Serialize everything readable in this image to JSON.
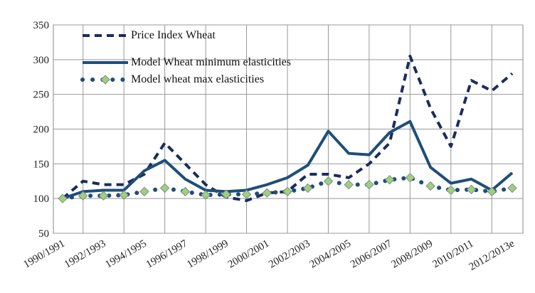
{
  "chart_data": {
    "type": "line",
    "categories": [
      "1990/1991",
      null,
      "1992/1993",
      null,
      "1994/1995",
      null,
      "1996/1997",
      null,
      "1998/1999",
      null,
      "2000/2001",
      null,
      "2002/2003",
      null,
      "2004/2005",
      null,
      "2006/2007",
      null,
      "2008/2009",
      null,
      "2010/2011",
      null,
      "2012/2013e"
    ],
    "series": [
      {
        "name": "Price Index Wheat",
        "color": "#1a2d5c",
        "style": "dashed",
        "values": [
          100,
          125,
          120,
          120,
          135,
          180,
          150,
          120,
          102,
          97,
          108,
          110,
          135,
          135,
          130,
          150,
          180,
          305,
          230,
          175,
          270,
          255,
          280
        ]
      },
      {
        "name": "Model Wheat minimum elasticities",
        "color": "#1f4e79",
        "style": "solid",
        "values": [
          100,
          110,
          112,
          112,
          140,
          155,
          128,
          112,
          110,
          112,
          120,
          130,
          148,
          197,
          165,
          163,
          195,
          211,
          145,
          122,
          128,
          112,
          137
        ]
      },
      {
        "name": "Model wheat max elasticities",
        "color": "#1f4e79",
        "style": "dotted",
        "marker_color": "#9bd27c",
        "values": [
          100,
          104,
          104,
          105,
          110,
          115,
          110,
          105,
          106,
          106,
          108,
          110,
          115,
          125,
          120,
          120,
          127,
          130,
          118,
          112,
          113,
          110,
          115
        ]
      }
    ],
    "ylim": [
      50,
      350
    ],
    "yticks": [
      50,
      100,
      150,
      200,
      250,
      300,
      350
    ],
    "grid": true,
    "legend": "top-left"
  }
}
